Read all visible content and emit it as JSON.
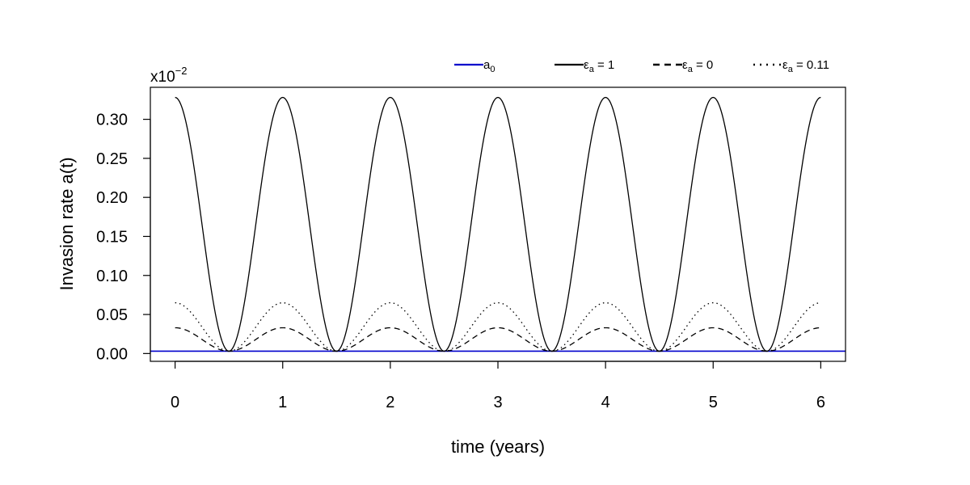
{
  "chart_data": {
    "type": "line",
    "title": "",
    "xlabel": "time (years)",
    "ylabel": "Invasion rate a(t)",
    "y_multiplier": {
      "base": "x10",
      "exponent": "−2"
    },
    "xlim": [
      -0.23,
      6.23
    ],
    "ylim": [
      -0.01,
      0.341
    ],
    "x_ticks": [
      0,
      1,
      2,
      3,
      4,
      5,
      6
    ],
    "x_tick_labels": [
      "0",
      "1",
      "2",
      "3",
      "4",
      "5",
      "6"
    ],
    "y_ticks": [
      0.0,
      0.05,
      0.1,
      0.15,
      0.2,
      0.25,
      0.3
    ],
    "y_tick_labels": [
      "0.00",
      "0.05",
      "0.10",
      "0.15",
      "0.20",
      "0.25",
      "0.30"
    ],
    "grid": false,
    "legend_position": "top-right",
    "curve_form": "a(t) = a0 + A * cos^2(pi * t)",
    "series": [
      {
        "key": "a0",
        "legend_sym": "a",
        "legend_sub": "0",
        "legend_rest": "",
        "color": "#0000cc",
        "style": "solid",
        "baseline": 0.003,
        "amplitude": 0.0
      },
      {
        "key": "eps1",
        "legend_sym": "ε",
        "legend_sub": "a",
        "legend_rest": " = 1",
        "color": "#000000",
        "style": "solid",
        "baseline": 0.003,
        "amplitude": 0.325
      },
      {
        "key": "eps0",
        "legend_sym": "ε",
        "legend_sub": "a",
        "legend_rest": " = 0",
        "color": "#000000",
        "style": "dashed",
        "baseline": 0.003,
        "amplitude": 0.03
      },
      {
        "key": "eps011",
        "legend_sym": "ε",
        "legend_sub": "a",
        "legend_rest": " = 0.11",
        "color": "#000000",
        "style": "dotted",
        "baseline": 0.003,
        "amplitude": 0.062
      }
    ]
  }
}
